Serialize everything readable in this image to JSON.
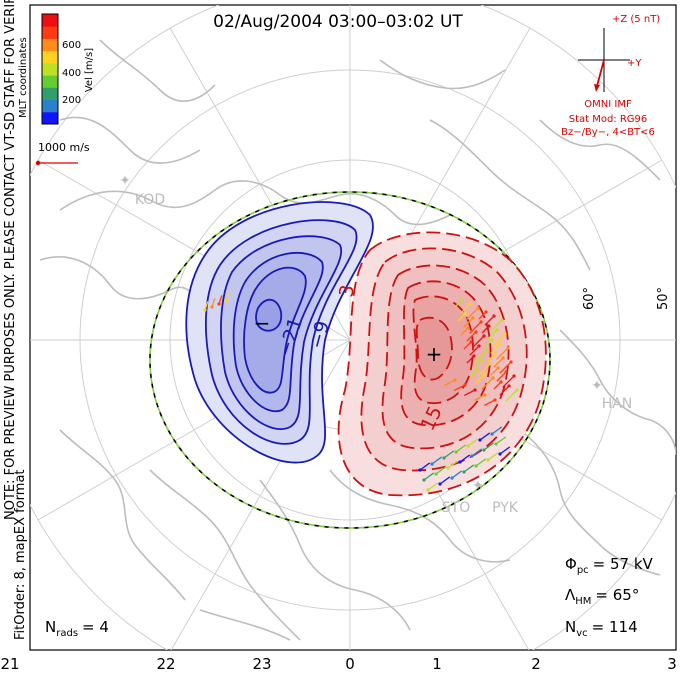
{
  "title": "02/Aug/2004 03:00–03:02 UT",
  "coordinate_system": "MLT coordinates",
  "side_note": "NOTE: FOR PREVIEW PURPOSES ONLY. PLEASE CONTACT VT-SD STAFF FOR VERIFICATION.",
  "side_note_2": "FitOrder: 8, mapEX format",
  "colorbar": {
    "label": "Vel [m/s]",
    "ticks": [
      "200",
      "400",
      "600"
    ],
    "colors": [
      "#1414ff",
      "#2a7fd0",
      "#2f9f6b",
      "#66cc33",
      "#bde024",
      "#ffd21f",
      "#ff8c1a",
      "#ff3b14",
      "#ee1010"
    ]
  },
  "scale_vector": {
    "label": "1000 m/s"
  },
  "imf_panel": {
    "z_label": "+Z (5 nT)",
    "y_label": "+Y",
    "source": "OMNI IMF",
    "stat_model": "Stat Mod: RG96",
    "condition": "Bz−/By−, 4<BT<6"
  },
  "stations": [
    "KOD",
    "HAN",
    "STO",
    "PYK"
  ],
  "latitude_labels": [
    "60°",
    "50°"
  ],
  "contour_labels": [
    "−21",
    "−9",
    "3",
    "15"
  ],
  "potential_markers": {
    "min": "−",
    "max": "+"
  },
  "stats": {
    "phi_pc": {
      "symbol": "Φ",
      "subscript": "pc",
      "value": "= 57 kV"
    },
    "lambda_hm": {
      "symbol": "Λ",
      "subscript": "HM",
      "value": "= 65°"
    },
    "n_vc": {
      "symbol": "N",
      "subscript": "vc",
      "value": "= 114"
    },
    "n_rads": {
      "symbol": "N",
      "subscript": "rads",
      "value": "= 4"
    }
  },
  "mlt_axis": [
    "21",
    "22",
    "23",
    "0",
    "1",
    "2",
    "3"
  ],
  "colors": {
    "negative_contour": "#1a1ab4",
    "positive_contour": "#cc1111",
    "annotation_red": "#dd0000",
    "grid": "#c8c8c8",
    "coast": "#bdbdbd"
  }
}
